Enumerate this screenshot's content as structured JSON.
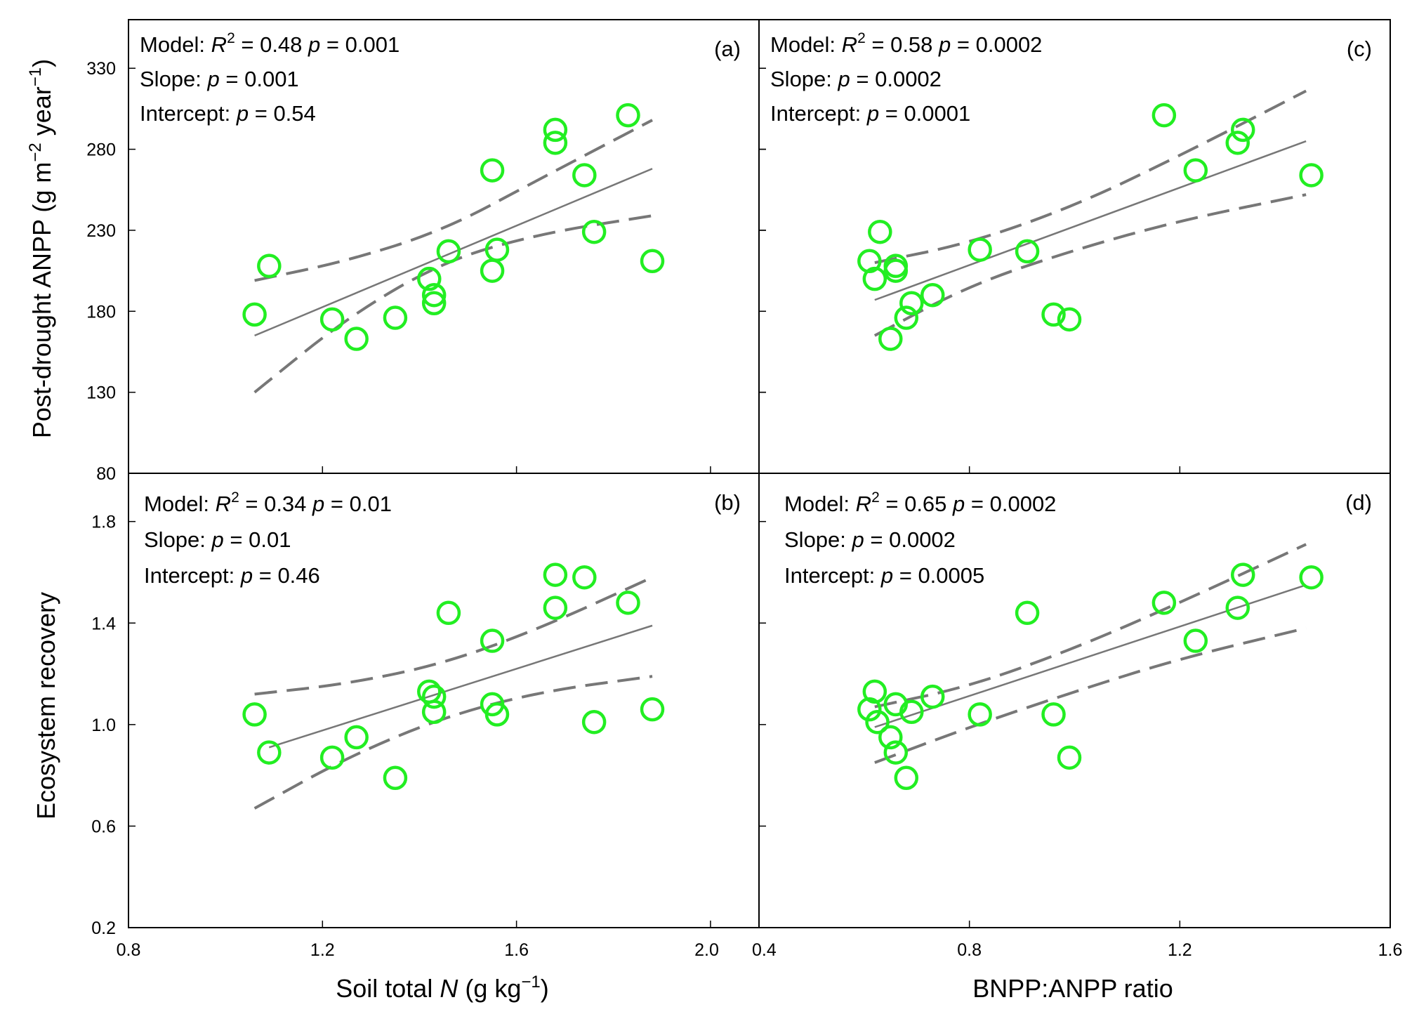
{
  "chart_data": [
    {
      "id": "a",
      "type": "scatter",
      "panel_label": "(a)",
      "xlabel_parts": [
        "Soil total ",
        "N",
        " (g kg",
        "−1",
        ")"
      ],
      "ylabel_parts": [
        "Post-drought ANPP (g m",
        "−2",
        " year",
        "−1",
        ")"
      ],
      "xlim": [
        0.8,
        2.1
      ],
      "ylim": [
        80,
        360
      ],
      "xticks": [],
      "yticks": [
        80,
        130,
        180,
        230,
        280,
        330
      ],
      "stats": {
        "model_prefix": "Model: ",
        "r": "R",
        "r_sup": "2",
        "r2_value": " = 0.48  ",
        "p_model": "p",
        "p_model_value": " = 0.001",
        "slope_prefix": "Slope: ",
        "p_slope": "p",
        "p_slope_value": " = 0.001",
        "intercept_prefix": "Intercept: ",
        "p_intercept": "p",
        "p_intercept_value": " = 0.54"
      },
      "points": [
        {
          "x": 1.06,
          "y": 178
        },
        {
          "x": 1.09,
          "y": 208
        },
        {
          "x": 1.22,
          "y": 175
        },
        {
          "x": 1.27,
          "y": 163
        },
        {
          "x": 1.35,
          "y": 176
        },
        {
          "x": 1.42,
          "y": 200
        },
        {
          "x": 1.43,
          "y": 185
        },
        {
          "x": 1.43,
          "y": 190
        },
        {
          "x": 1.46,
          "y": 217
        },
        {
          "x": 1.55,
          "y": 205
        },
        {
          "x": 1.55,
          "y": 267
        },
        {
          "x": 1.56,
          "y": 218
        },
        {
          "x": 1.68,
          "y": 292
        },
        {
          "x": 1.68,
          "y": 284
        },
        {
          "x": 1.74,
          "y": 264
        },
        {
          "x": 1.76,
          "y": 229
        },
        {
          "x": 1.83,
          "y": 301
        },
        {
          "x": 1.88,
          "y": 211
        }
      ],
      "fit_line": [
        {
          "x": 1.06,
          "y": 165
        },
        {
          "x": 1.88,
          "y": 268
        }
      ],
      "ci_upper": [
        {
          "x": 1.06,
          "y": 199
        },
        {
          "x": 1.25,
          "y": 211
        },
        {
          "x": 1.45,
          "y": 230
        },
        {
          "x": 1.65,
          "y": 262
        },
        {
          "x": 1.88,
          "y": 298
        }
      ],
      "ci_lower": [
        {
          "x": 1.06,
          "y": 130
        },
        {
          "x": 1.25,
          "y": 176
        },
        {
          "x": 1.45,
          "y": 211
        },
        {
          "x": 1.65,
          "y": 228
        },
        {
          "x": 1.88,
          "y": 239
        }
      ]
    },
    {
      "id": "b",
      "type": "scatter",
      "panel_label": "(b)",
      "ylabel": "Ecosystem recovery",
      "xlim": [
        0.8,
        2.1
      ],
      "ylim": [
        0.2,
        1.99
      ],
      "xticks": [
        0.8,
        1.2,
        1.6,
        2.0
      ],
      "xtick_labels": [
        "0.8",
        "1.2",
        "1.6",
        "2.0"
      ],
      "yticks": [
        0.2,
        0.6,
        1.0,
        1.4,
        1.8
      ],
      "ytick_labels": [
        "0.2",
        "0.6",
        "1.0",
        "1.4",
        "1.8"
      ],
      "stats": {
        "model_prefix": "Model: ",
        "r": "R",
        "r_sup": "2",
        "r2_value": " = 0.34  ",
        "p_model": "p",
        "p_model_value": " = 0.01",
        "slope_prefix": "Slope: ",
        "p_slope": "p",
        "p_slope_value": " = 0.01",
        "intercept_prefix": "Intercept: ",
        "p_intercept": "p",
        "p_intercept_value": " = 0.46"
      },
      "points": [
        {
          "x": 1.06,
          "y": 1.04
        },
        {
          "x": 1.09,
          "y": 0.89
        },
        {
          "x": 1.22,
          "y": 0.87
        },
        {
          "x": 1.27,
          "y": 0.95
        },
        {
          "x": 1.35,
          "y": 0.79
        },
        {
          "x": 1.42,
          "y": 1.13
        },
        {
          "x": 1.43,
          "y": 1.05
        },
        {
          "x": 1.43,
          "y": 1.11
        },
        {
          "x": 1.46,
          "y": 1.44
        },
        {
          "x": 1.55,
          "y": 1.08
        },
        {
          "x": 1.55,
          "y": 1.33
        },
        {
          "x": 1.56,
          "y": 1.04
        },
        {
          "x": 1.68,
          "y": 1.59
        },
        {
          "x": 1.68,
          "y": 1.46
        },
        {
          "x": 1.74,
          "y": 1.58
        },
        {
          "x": 1.76,
          "y": 1.01
        },
        {
          "x": 1.83,
          "y": 1.48
        },
        {
          "x": 1.88,
          "y": 1.06
        }
      ],
      "fit_line": [
        {
          "x": 1.09,
          "y": 0.91
        },
        {
          "x": 1.88,
          "y": 1.39
        }
      ],
      "ci_upper": [
        {
          "x": 1.06,
          "y": 1.12
        },
        {
          "x": 1.25,
          "y": 1.16
        },
        {
          "x": 1.45,
          "y": 1.24
        },
        {
          "x": 1.65,
          "y": 1.38
        },
        {
          "x": 1.88,
          "y": 1.58
        }
      ],
      "ci_lower": [
        {
          "x": 1.06,
          "y": 0.67
        },
        {
          "x": 1.25,
          "y": 0.87
        },
        {
          "x": 1.45,
          "y": 1.03
        },
        {
          "x": 1.65,
          "y": 1.13
        },
        {
          "x": 1.88,
          "y": 1.19
        }
      ]
    },
    {
      "id": "c",
      "type": "scatter",
      "panel_label": "(c)",
      "xlim": [
        0.4,
        1.6
      ],
      "ylim": [
        80,
        360
      ],
      "xticks": [],
      "yticks": [
        80,
        130,
        180,
        230,
        280,
        330
      ],
      "stats": {
        "model_prefix": "Model: ",
        "r": "R",
        "r_sup": "2",
        "r2_value": " = 0.58  ",
        "p_model": "p",
        "p_model_value": " = 0.0002",
        "slope_prefix": "Slope: ",
        "p_slope": "p",
        "p_slope_value": " = 0.0002",
        "intercept_prefix": "Intercept: ",
        "p_intercept": "p",
        "p_intercept_value": " = 0.0001"
      },
      "points": [
        {
          "x": 0.61,
          "y": 211
        },
        {
          "x": 0.62,
          "y": 200
        },
        {
          "x": 0.63,
          "y": 229
        },
        {
          "x": 0.65,
          "y": 163
        },
        {
          "x": 0.66,
          "y": 208
        },
        {
          "x": 0.66,
          "y": 205
        },
        {
          "x": 0.68,
          "y": 176
        },
        {
          "x": 0.69,
          "y": 185
        },
        {
          "x": 0.73,
          "y": 190
        },
        {
          "x": 0.82,
          "y": 218
        },
        {
          "x": 0.91,
          "y": 217
        },
        {
          "x": 0.96,
          "y": 178
        },
        {
          "x": 0.99,
          "y": 175
        },
        {
          "x": 1.17,
          "y": 301
        },
        {
          "x": 1.23,
          "y": 267
        },
        {
          "x": 1.31,
          "y": 284
        },
        {
          "x": 1.32,
          "y": 292
        },
        {
          "x": 1.45,
          "y": 264
        }
      ],
      "fit_line": [
        {
          "x": 0.62,
          "y": 187
        },
        {
          "x": 1.44,
          "y": 285
        }
      ],
      "ci_upper": [
        {
          "x": 0.62,
          "y": 210
        },
        {
          "x": 0.8,
          "y": 222
        },
        {
          "x": 1.0,
          "y": 245
        },
        {
          "x": 1.2,
          "y": 276
        },
        {
          "x": 1.44,
          "y": 316
        }
      ],
      "ci_lower": [
        {
          "x": 0.62,
          "y": 165
        },
        {
          "x": 0.8,
          "y": 196
        },
        {
          "x": 1.0,
          "y": 218
        },
        {
          "x": 1.2,
          "y": 236
        },
        {
          "x": 1.44,
          "y": 252
        }
      ]
    },
    {
      "id": "d",
      "type": "scatter",
      "panel_label": "(d)",
      "xlabel": "BNPP:ANPP ratio",
      "xlim": [
        0.4,
        1.6
      ],
      "ylim": [
        0.2,
        1.99
      ],
      "xticks": [
        0.4,
        0.8,
        1.2,
        1.6
      ],
      "xtick_labels": [
        "0.4",
        "0.8",
        "1.2",
        "1.6"
      ],
      "yticks": [],
      "stats": {
        "model_prefix": "Model: ",
        "r": "R",
        "r_sup": "2",
        "r2_value": " = 0.65  ",
        "p_model": "p",
        "p_model_value": " = 0.0002",
        "slope_prefix": "Slope: ",
        "p_slope": "p",
        "p_slope_value": " = 0.0002",
        "intercept_prefix": "Intercept: ",
        "p_intercept": "p",
        "p_intercept_value": " = 0.0005"
      },
      "points": [
        {
          "x": 0.61,
          "y": 1.06
        },
        {
          "x": 0.62,
          "y": 1.13
        },
        {
          "x": 0.625,
          "y": 1.01
        },
        {
          "x": 0.65,
          "y": 0.95
        },
        {
          "x": 0.66,
          "y": 0.89
        },
        {
          "x": 0.66,
          "y": 1.08
        },
        {
          "x": 0.68,
          "y": 0.79
        },
        {
          "x": 0.69,
          "y": 1.05
        },
        {
          "x": 0.73,
          "y": 1.11
        },
        {
          "x": 0.82,
          "y": 1.04
        },
        {
          "x": 0.91,
          "y": 1.44
        },
        {
          "x": 0.96,
          "y": 1.04
        },
        {
          "x": 0.99,
          "y": 0.87
        },
        {
          "x": 1.17,
          "y": 1.48
        },
        {
          "x": 1.23,
          "y": 1.33
        },
        {
          "x": 1.31,
          "y": 1.46
        },
        {
          "x": 1.32,
          "y": 1.59
        },
        {
          "x": 1.45,
          "y": 1.58
        }
      ],
      "fit_line": [
        {
          "x": 0.62,
          "y": 0.99
        },
        {
          "x": 1.44,
          "y": 1.55
        }
      ],
      "ci_upper": [
        {
          "x": 0.62,
          "y": 1.07
        },
        {
          "x": 0.8,
          "y": 1.15
        },
        {
          "x": 1.0,
          "y": 1.3
        },
        {
          "x": 1.2,
          "y": 1.48
        },
        {
          "x": 1.44,
          "y": 1.71
        }
      ],
      "ci_lower": [
        {
          "x": 0.62,
          "y": 0.85
        },
        {
          "x": 0.8,
          "y": 0.99
        },
        {
          "x": 1.0,
          "y": 1.13
        },
        {
          "x": 1.2,
          "y": 1.26
        },
        {
          "x": 1.44,
          "y": 1.38
        }
      ]
    }
  ],
  "style": {
    "marker_color": "#22ee22",
    "line_color": "#777777",
    "frame_color": "#000000"
  }
}
